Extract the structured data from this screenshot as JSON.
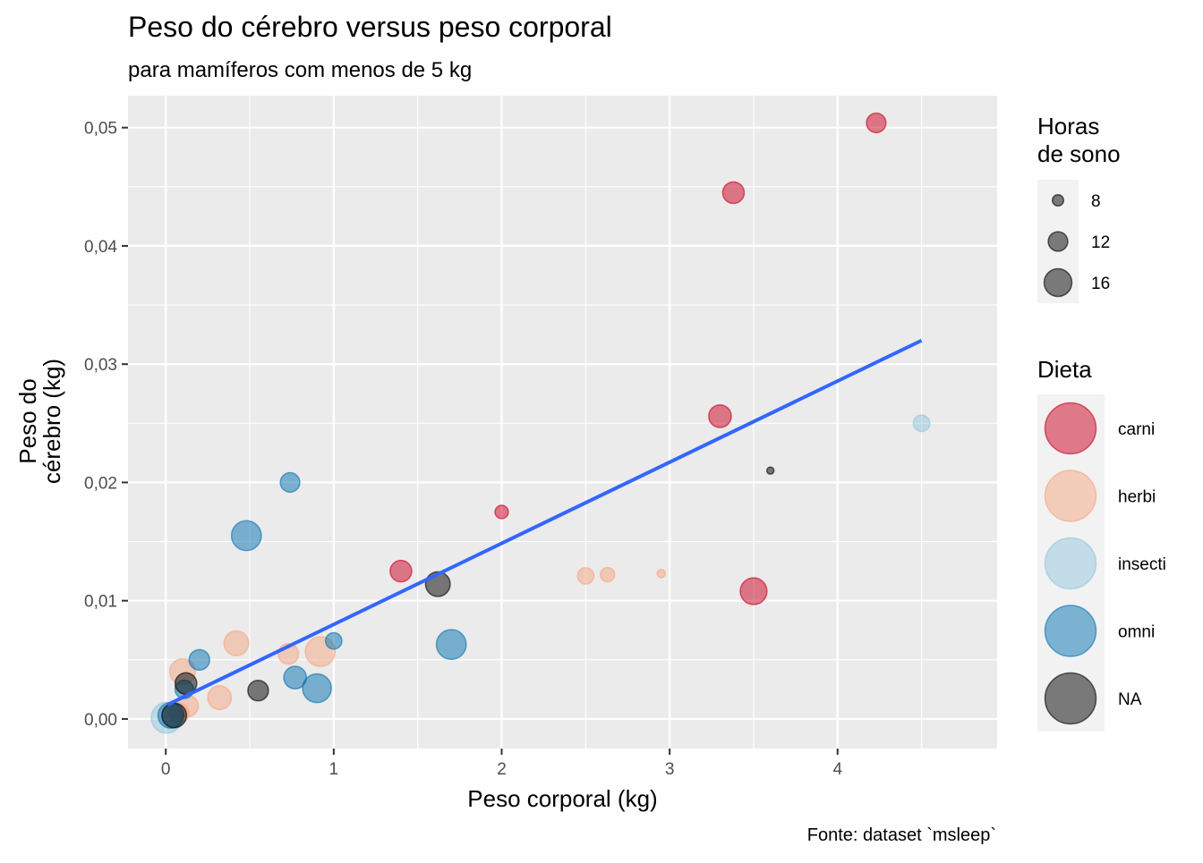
{
  "chart_data": {
    "type": "scatter",
    "title": "Peso do cérebro versus peso corporal",
    "subtitle": "para mamíferos com menos de 5 kg",
    "xlabel": "Peso corporal (kg)",
    "ylabel_lines": [
      "Peso do",
      "cérebro (kg)"
    ],
    "caption": "Fonte: dataset `msleep`",
    "xlim": [
      -0.225,
      4.95
    ],
    "ylim": [
      -0.0025,
      0.0527
    ],
    "x_ticks": [
      0,
      1,
      2,
      3,
      4
    ],
    "x_tick_labels": [
      "0",
      "1",
      "2",
      "3",
      "4"
    ],
    "y_ticks": [
      0,
      0.01,
      0.02,
      0.03,
      0.04,
      0.05
    ],
    "y_tick_labels": [
      "0,00",
      "0,01",
      "0,02",
      "0,03",
      "0,04",
      "0,05"
    ],
    "grid": true,
    "legend_placement": "right",
    "size_legend": {
      "title_lines": [
        "Horas",
        "de sono"
      ],
      "entries": [
        {
          "label": "8",
          "value": 8
        },
        {
          "label": "12",
          "value": 12
        },
        {
          "label": "16",
          "value": 16
        }
      ]
    },
    "color_legend": {
      "title": "Dieta",
      "entries": [
        {
          "label": "carni",
          "key": "carni"
        },
        {
          "label": "herbi",
          "key": "herbi"
        },
        {
          "label": "insecti",
          "key": "insecti"
        },
        {
          "label": "omni",
          "key": "omni"
        },
        {
          "label": "NA",
          "key": "NA"
        }
      ]
    },
    "colors": {
      "carni": "#CA0020",
      "herbi": "#F4A582",
      "insecti": "#92C5DE",
      "omni": "#0571B0",
      "NA": "#000000",
      "trend": "#3366FF",
      "panel": "#EBEBEB",
      "grid": "#FFFFFF"
    },
    "trend_line": {
      "x": [
        0.01,
        4.5
      ],
      "y": [
        0.0012,
        0.032
      ]
    },
    "points": [
      {
        "x": 4.23,
        "y": 0.0504,
        "sleep": 12.0,
        "diet": "carni"
      },
      {
        "x": 3.38,
        "y": 0.0445,
        "sleep": 13.0,
        "diet": "carni"
      },
      {
        "x": 3.3,
        "y": 0.0256,
        "sleep": 13.5,
        "diet": "carni"
      },
      {
        "x": 2.0,
        "y": 0.0175,
        "sleep": 9.0,
        "diet": "carni"
      },
      {
        "x": 1.4,
        "y": 0.0125,
        "sleep": 13.0,
        "diet": "carni"
      },
      {
        "x": 3.5,
        "y": 0.0108,
        "sleep": 15.5,
        "diet": "carni"
      },
      {
        "x": 2.5,
        "y": 0.0121,
        "sleep": 10.5,
        "diet": "herbi"
      },
      {
        "x": 2.63,
        "y": 0.0122,
        "sleep": 9.5,
        "diet": "herbi"
      },
      {
        "x": 2.95,
        "y": 0.0123,
        "sleep": 6.5,
        "diet": "herbi"
      },
      {
        "x": 0.42,
        "y": 0.0064,
        "sleep": 14.5,
        "diet": "herbi"
      },
      {
        "x": 0.73,
        "y": 0.0055,
        "sleep": 12.5,
        "diet": "herbi"
      },
      {
        "x": 0.92,
        "y": 0.0057,
        "sleep": 17.0,
        "diet": "herbi"
      },
      {
        "x": 0.1,
        "y": 0.004,
        "sleep": 15.0,
        "diet": "herbi"
      },
      {
        "x": 0.32,
        "y": 0.0018,
        "sleep": 14.0,
        "diet": "herbi"
      },
      {
        "x": 0.13,
        "y": 0.0011,
        "sleep": 13.0,
        "diet": "herbi"
      },
      {
        "x": 0.08,
        "y": 0.0005,
        "sleep": 12.0,
        "diet": "herbi"
      },
      {
        "x": 4.5,
        "y": 0.025,
        "sleep": 10.5,
        "diet": "insecti"
      },
      {
        "x": 0.005,
        "y": 0.0001,
        "sleep": 17.5,
        "diet": "insecti"
      },
      {
        "x": 0.74,
        "y": 0.02,
        "sleep": 12.0,
        "diet": "omni"
      },
      {
        "x": 0.48,
        "y": 0.0155,
        "sleep": 17.0,
        "diet": "omni"
      },
      {
        "x": 1.7,
        "y": 0.0063,
        "sleep": 17.0,
        "diet": "omni"
      },
      {
        "x": 1.0,
        "y": 0.0066,
        "sleep": 10.5,
        "diet": "omni"
      },
      {
        "x": 0.2,
        "y": 0.005,
        "sleep": 12.5,
        "diet": "omni"
      },
      {
        "x": 0.77,
        "y": 0.0035,
        "sleep": 13.5,
        "diet": "omni"
      },
      {
        "x": 0.9,
        "y": 0.0026,
        "sleep": 16.5,
        "diet": "omni"
      },
      {
        "x": 0.11,
        "y": 0.0025,
        "sleep": 11.5,
        "diet": "omni"
      },
      {
        "x": 0.03,
        "y": 0.0003,
        "sleep": 15.0,
        "diet": "omni"
      },
      {
        "x": 3.6,
        "y": 0.021,
        "sleep": 6.0,
        "diet": "NA"
      },
      {
        "x": 1.62,
        "y": 0.0114,
        "sleep": 14.5,
        "diet": "NA"
      },
      {
        "x": 0.55,
        "y": 0.0024,
        "sleep": 12.5,
        "diet": "NA"
      },
      {
        "x": 0.12,
        "y": 0.003,
        "sleep": 13.0,
        "diet": "NA"
      },
      {
        "x": 0.05,
        "y": 0.0003,
        "sleep": 14.5,
        "diet": "NA"
      }
    ]
  }
}
